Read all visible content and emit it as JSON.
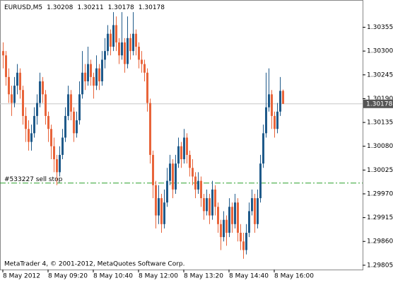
{
  "chart_data": {
    "type": "candlestick",
    "symbol": "EURUSD,M5",
    "footer": "MetaTrader 4, © 2001-2012, MetaQuotes Software Corp.",
    "up_color": "#1f5a8a",
    "down_color": "#e8643a",
    "doji_color": "#3cb34a",
    "ylim": [
      1.29795,
      1.30418
    ],
    "yticks": [
      1.29805,
      {
        "value": 1.2986,
        "label": "1.29860"
      },
      1.29915,
      {
        "value": 1.2997,
        "label": "1.29970"
      },
      1.30025,
      {
        "value": 1.3008,
        "label": "1.30080"
      },
      1.30135,
      {
        "value": 1.3019,
        "label": "1.30190"
      },
      1.30245,
      {
        "value": 1.303,
        "label": "1.30300"
      },
      1.30355
    ],
    "current_price": 1.30178,
    "order_line": {
      "label": "#533227 sell stop",
      "value": 1.29995
    },
    "categories": [
      "8 May 2012",
      null,
      null,
      null,
      null,
      null,
      null,
      null,
      null,
      null,
      null,
      null,
      null,
      null,
      null,
      null,
      "8 May 09:20",
      null,
      null,
      null,
      null,
      null,
      null,
      null,
      null,
      null,
      null,
      null,
      null,
      null,
      null,
      null,
      "8 May 10:40",
      null,
      null,
      null,
      null,
      null,
      null,
      null,
      null,
      null,
      null,
      null,
      null,
      null,
      null,
      null,
      "8 May 12:00",
      null,
      null,
      null,
      null,
      null,
      null,
      null,
      null,
      null,
      null,
      null,
      null,
      null,
      null,
      null,
      "8 May 13:20",
      null,
      null,
      null,
      null,
      null,
      null,
      null,
      null,
      null,
      null,
      null,
      null,
      null,
      null,
      null,
      "8 May 14:40",
      null,
      null,
      null,
      null,
      null,
      null,
      null,
      null,
      null,
      null,
      null,
      null,
      null,
      null,
      null,
      "8 May 16:00",
      null,
      null,
      null
    ],
    "candles": [
      [
        1.303,
        1.3032,
        1.3026,
        1.3029
      ],
      [
        1.3029,
        1.303,
        1.3022,
        1.3024
      ],
      [
        1.3024,
        1.3026,
        1.3018,
        1.302
      ],
      [
        1.302,
        1.3022,
        1.3015,
        1.3018
      ],
      [
        1.3018,
        1.3024,
        1.3017,
        1.3022
      ],
      [
        1.3022,
        1.3027,
        1.302,
        1.3025
      ],
      [
        1.3025,
        1.3026,
        1.3019,
        1.3021
      ],
      [
        1.3021,
        1.3022,
        1.3013,
        1.3015
      ],
      [
        1.3015,
        1.3017,
        1.3009,
        1.3012
      ],
      [
        1.3012,
        1.3014,
        1.3007,
        1.3009
      ],
      [
        1.3009,
        1.3013,
        1.3007,
        1.3011
      ],
      [
        1.3011,
        1.3017,
        1.301,
        1.3015
      ],
      [
        1.3015,
        1.302,
        1.3013,
        1.3018
      ],
      [
        1.3018,
        1.3025,
        1.3017,
        1.3023
      ],
      [
        1.3023,
        1.3024,
        1.3018,
        1.302
      ],
      [
        1.302,
        1.3021,
        1.3013,
        1.3015
      ],
      [
        1.3015,
        1.3016,
        1.3009,
        1.3012
      ],
      [
        1.3012,
        1.3013,
        1.3005,
        1.3008
      ],
      [
        1.3008,
        1.301,
        1.3002,
        1.3005
      ],
      [
        1.3005,
        1.3006,
        1.2999,
        1.3002
      ],
      [
        1.3002,
        1.3008,
        1.3001,
        1.3006
      ],
      [
        1.3006,
        1.3012,
        1.3005,
        1.301
      ],
      [
        1.301,
        1.3017,
        1.3009,
        1.3015
      ],
      [
        1.3015,
        1.3022,
        1.3014,
        1.302
      ],
      [
        1.302,
        1.3021,
        1.3014,
        1.3016
      ],
      [
        1.3016,
        1.3017,
        1.3009,
        1.3011
      ],
      [
        1.3011,
        1.3016,
        1.301,
        1.3014
      ],
      [
        1.3014,
        1.3023,
        1.3013,
        1.302
      ],
      [
        1.302,
        1.303,
        1.3019,
        1.3025
      ],
      [
        1.3025,
        1.3027,
        1.3021,
        1.3023
      ],
      [
        1.3023,
        1.3031,
        1.3022,
        1.3027
      ],
      [
        1.3027,
        1.3028,
        1.3022,
        1.3024
      ],
      [
        1.3024,
        1.3025,
        1.3019,
        1.3022
      ],
      [
        1.3022,
        1.3029,
        1.3021,
        1.3026
      ],
      [
        1.3026,
        1.3027,
        1.3021,
        1.3023
      ],
      [
        1.3023,
        1.303,
        1.3022,
        1.3028
      ],
      [
        1.3028,
        1.3033,
        1.3026,
        1.303
      ],
      [
        1.303,
        1.3036,
        1.3029,
        1.3034
      ],
      [
        1.3034,
        1.3035,
        1.3029,
        1.3031
      ],
      [
        1.3031,
        1.3039,
        1.303,
        1.3036
      ],
      [
        1.3036,
        1.3038,
        1.303,
        1.3032
      ],
      [
        1.3032,
        1.3033,
        1.3027,
        1.3029
      ],
      [
        1.3029,
        1.3039,
        1.3028,
        1.3032
      ],
      [
        1.3032,
        1.3033,
        1.3025,
        1.3027
      ],
      [
        1.3027,
        1.3038,
        1.3026,
        1.3033
      ],
      [
        1.3033,
        1.3034,
        1.3028,
        1.303
      ],
      [
        1.303,
        1.3039,
        1.3029,
        1.3034
      ],
      [
        1.3034,
        1.3035,
        1.3029,
        1.3031
      ],
      [
        1.3031,
        1.3032,
        1.3026,
        1.3028
      ],
      [
        1.3028,
        1.303,
        1.3025,
        1.3027
      ],
      [
        1.3027,
        1.3028,
        1.3023,
        1.3025
      ],
      [
        1.3025,
        1.3026,
        1.3016,
        1.3018
      ],
      [
        1.3018,
        1.3019,
        1.3004,
        1.3006
      ],
      [
        1.3006,
        1.3007,
        1.2996,
        1.2999
      ],
      [
        1.2999,
        1.3,
        1.2989,
        1.2992
      ],
      [
        1.2992,
        1.2999,
        1.299,
        1.2996
      ],
      [
        1.2996,
        1.2997,
        1.2988,
        1.299
      ],
      [
        1.299,
        1.2998,
        1.2989,
        1.2995
      ],
      [
        1.2995,
        1.3003,
        1.2994,
        1.3
      ],
      [
        1.3,
        1.3006,
        1.2999,
        1.3004
      ],
      [
        1.3004,
        1.3005,
        1.2996,
        1.2998
      ],
      [
        1.2998,
        1.3006,
        1.2997,
        1.3004
      ],
      [
        1.3004,
        1.301,
        1.3003,
        1.3008
      ],
      [
        1.3008,
        1.3009,
        1.3003,
        1.3005
      ],
      [
        1.3005,
        1.3012,
        1.3004,
        1.301
      ],
      [
        1.301,
        1.3011,
        1.3004,
        1.3006
      ],
      [
        1.3006,
        1.3007,
        1.3001,
        1.3003
      ],
      [
        1.3003,
        1.3005,
        1.2999,
        1.3001
      ],
      [
        1.3001,
        1.3002,
        1.2996,
        1.2998
      ],
      [
        1.2998,
        1.3002,
        1.2997,
        1.3
      ],
      [
        1.3,
        1.3001,
        1.2994,
        1.2996
      ],
      [
        1.2996,
        1.2997,
        1.2991,
        1.2993
      ],
      [
        1.2993,
        1.2998,
        1.2992,
        1.2996
      ],
      [
        1.2996,
        1.2997,
        1.299,
        1.2992
      ],
      [
        1.2992,
        1.3,
        1.2991,
        1.2998
      ],
      [
        1.2998,
        1.2999,
        1.2992,
        1.2994
      ],
      [
        1.2994,
        1.2995,
        1.2988,
        1.299
      ],
      [
        1.299,
        1.2991,
        1.2984,
        1.2987
      ],
      [
        1.2987,
        1.2993,
        1.2986,
        1.2991
      ],
      [
        1.2991,
        1.2992,
        1.2985,
        1.2988
      ],
      [
        1.2988,
        1.2996,
        1.2987,
        1.2994
      ],
      [
        1.2994,
        1.2995,
        1.2988,
        1.299
      ],
      [
        1.299,
        1.2997,
        1.2989,
        1.2995
      ],
      [
        1.2995,
        1.2996,
        1.2986,
        1.2988
      ],
      [
        1.2988,
        1.299,
        1.2984,
        1.2986
      ],
      [
        1.2986,
        1.2988,
        1.2982,
        1.2984
      ],
      [
        1.2984,
        1.299,
        1.2983,
        1.2988
      ],
      [
        1.2988,
        1.2995,
        1.2987,
        1.2993
      ],
      [
        1.2993,
        1.2998,
        1.2992,
        1.2996
      ],
      [
        1.2996,
        1.2997,
        1.2988,
        1.299
      ],
      [
        1.299,
        1.2998,
        1.2989,
        1.2996
      ],
      [
        1.2996,
        1.3006,
        1.2995,
        1.3004
      ],
      [
        1.3004,
        1.3013,
        1.3003,
        1.3011
      ],
      [
        1.3011,
        1.3025,
        1.301,
        1.3017
      ],
      [
        1.3017,
        1.3026,
        1.3016,
        1.302
      ],
      [
        1.302,
        1.3021,
        1.3012,
        1.3015
      ],
      [
        1.3015,
        1.3016,
        1.301,
        1.3012
      ],
      [
        1.3012,
        1.3018,
        1.3011,
        1.3016
      ],
      [
        1.3016,
        1.3024,
        1.3015,
        1.30208
      ],
      [
        1.30208,
        1.30211,
        1.30178,
        1.30178
      ]
    ]
  }
}
